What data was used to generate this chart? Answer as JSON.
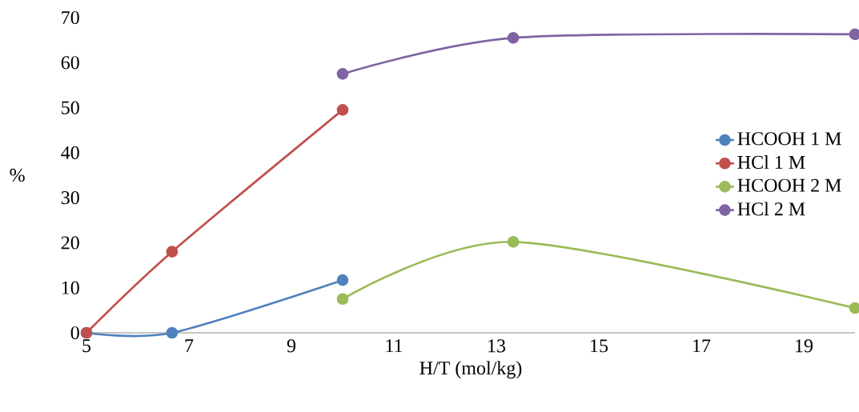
{
  "chart_data": {
    "type": "line",
    "xlabel": "H/T (mol/kg)",
    "ylabel": "%",
    "xlim": [
      5,
      20
    ],
    "ylim": [
      0,
      70
    ],
    "xticks": [
      5,
      7,
      9,
      11,
      13,
      15,
      17,
      19
    ],
    "yticks": [
      0,
      10,
      20,
      30,
      40,
      50,
      60,
      70
    ],
    "legend": "right",
    "marker": "circle",
    "line_style": "solid",
    "series": [
      {
        "name": "HCOOH 1 M",
        "color": "#4f81bd",
        "x": [
          5,
          6.67,
          10
        ],
        "values": [
          0,
          0,
          11.7
        ]
      },
      {
        "name": "HCl 1 M",
        "color": "#c0504d",
        "x": [
          5,
          6.67,
          10
        ],
        "values": [
          0,
          18,
          49.5
        ]
      },
      {
        "name": "HCOOH 2 M",
        "color": "#9bbb59",
        "x": [
          10,
          13.33,
          20
        ],
        "values": [
          7.5,
          20.2,
          5.5
        ]
      },
      {
        "name": "HCl 2 M",
        "color": "#8064a2",
        "x": [
          10,
          13.33,
          20
        ],
        "values": [
          57.5,
          65.5,
          66.3
        ]
      }
    ]
  }
}
